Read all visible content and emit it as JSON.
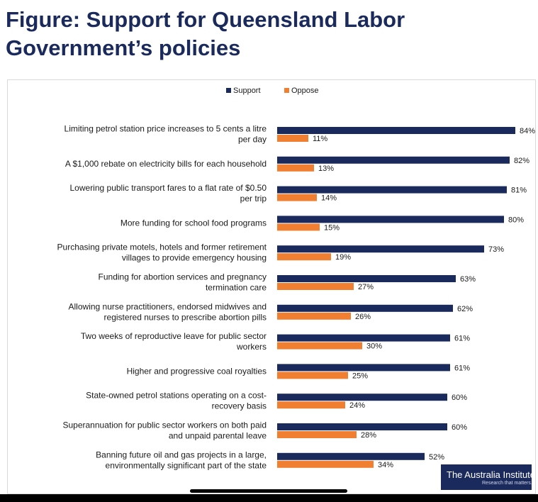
{
  "title_line1": "Figure: Support for Queensland Labor",
  "title_line2": "Government’s policies",
  "logo": {
    "text": "The Australia Institute",
    "tagline": "Research that matters."
  },
  "chart_data": {
    "type": "bar",
    "orientation": "horizontal",
    "legend_position": "top-center",
    "grid": false,
    "xlim": [
      0,
      100
    ],
    "categories": [
      [
        "Limiting petrol station price increases to 5 cents a litre",
        "per day"
      ],
      [
        "A $1,000 rebate on electricity bills for each household"
      ],
      [
        "Lowering public transport fares to a flat rate of $0.50",
        "per trip"
      ],
      [
        "More funding for school food programs"
      ],
      [
        "Purchasing private motels, hotels and former retirement",
        "villages to provide emergency housing"
      ],
      [
        "Funding for abortion services and pregnancy",
        "termination care"
      ],
      [
        "Allowing nurse practitioners, endorsed midwives and",
        "registered nurses to prescribe abortion pills"
      ],
      [
        "Two weeks of reproductive leave for public sector",
        "workers"
      ],
      [
        "Higher and progressive coal royalties"
      ],
      [
        "State-owned petrol stations operating on a cost-",
        "recovery basis"
      ],
      [
        "Superannuation for public sector workers on both paid",
        "and unpaid parental leave"
      ],
      [
        "Banning future oil and gas projects in a large,",
        "environmentally significant part of the state"
      ]
    ],
    "series": [
      {
        "name": "Support",
        "color": "#1b2a5c",
        "values": [
          84,
          82,
          81,
          80,
          73,
          63,
          62,
          61,
          61,
          60,
          60,
          52
        ]
      },
      {
        "name": "Oppose",
        "color": "#f07f32",
        "values": [
          11,
          13,
          14,
          15,
          19,
          27,
          26,
          30,
          25,
          24,
          28,
          34
        ]
      }
    ],
    "value_suffix": "%"
  }
}
